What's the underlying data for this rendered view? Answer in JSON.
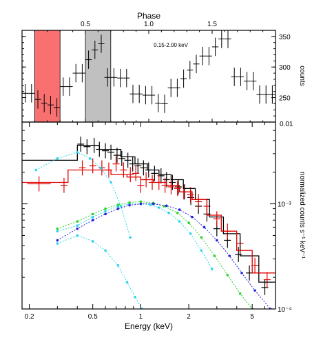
{
  "chart_data": [
    {
      "type": "line",
      "panel": "top",
      "title": "Phase",
      "annotation": "0.15-2.00 keV",
      "ylabel": "counts",
      "xlim": [
        0,
        2.0
      ],
      "ylim": [
        210,
        360
      ],
      "x_ticks": [
        {
          "value": 0.5,
          "label": "0.5"
        },
        {
          "value": 1.0,
          "label": "1.0"
        },
        {
          "value": 1.5,
          "label": "1.5"
        }
      ],
      "y_ticks": [
        {
          "value": 350,
          "label": "350"
        },
        {
          "value": 300,
          "label": "300"
        },
        {
          "value": 250,
          "label": "250"
        }
      ],
      "corner_label": "0.01",
      "shaded_regions": [
        {
          "x0": 0.1,
          "x1": 0.3,
          "color": "#f87070"
        },
        {
          "x0": 0.5,
          "x1": 0.7,
          "color": "#c0c0c0"
        }
      ],
      "series": [
        {
          "color": "#000000",
          "x": [
            0.025,
            0.075,
            0.125,
            0.175,
            0.225,
            0.275,
            0.325,
            0.375,
            0.425,
            0.475,
            0.525,
            0.575,
            0.625,
            0.675,
            0.725,
            0.775,
            0.825,
            0.875,
            0.925,
            0.975,
            1.025,
            1.075,
            1.125,
            1.175,
            1.225,
            1.275,
            1.325,
            1.375,
            1.425,
            1.475,
            1.525,
            1.575,
            1.625,
            1.675,
            1.725,
            1.775,
            1.825,
            1.875,
            1.925,
            1.975
          ],
          "y": [
            257,
            257,
            247,
            241,
            238,
            234,
            268,
            268,
            290,
            290,
            312,
            328,
            338,
            283,
            283,
            282,
            282,
            256,
            256,
            254,
            254,
            241,
            240,
            266,
            266,
            281,
            295,
            305,
            318,
            318,
            333,
            346,
            346,
            284,
            284,
            277,
            277,
            255,
            255,
            255
          ],
          "yerr": [
            15,
            15,
            15,
            15,
            15,
            15,
            15,
            15,
            15,
            15,
            15,
            15,
            15,
            15,
            15,
            15,
            15,
            15,
            15,
            15,
            15,
            15,
            15,
            15,
            15,
            15,
            15,
            15,
            15,
            15,
            15,
            15,
            15,
            15,
            15,
            15,
            15,
            15,
            15,
            15
          ]
        }
      ]
    },
    {
      "type": "line",
      "panel": "bottom",
      "xlabel": "Energy (keV)",
      "ylabel": "normalized counts  s⁻¹ keV⁻¹",
      "xscale": "log",
      "yscale": "log",
      "xlim": [
        0.18,
        7.0
      ],
      "ylim": [
        0.0001,
        0.006
      ],
      "x_ticks": [
        {
          "value": 0.2,
          "label": "0.2"
        },
        {
          "value": 0.5,
          "label": "0.5"
        },
        {
          "value": 1,
          "label": "1"
        },
        {
          "value": 2,
          "label": "2"
        },
        {
          "value": 5,
          "label": "5"
        }
      ],
      "y_ticks": [
        {
          "value": 0.001,
          "label": "10⁻³"
        },
        {
          "value": 0.0001,
          "label": "10⁻⁴"
        }
      ],
      "series": [
        {
          "kind": "data",
          "color": "#000000",
          "x": [
            0.42,
            0.46,
            0.51,
            0.55,
            0.6,
            0.65,
            0.71,
            0.76,
            0.83,
            0.89,
            0.96,
            1.04,
            1.12,
            1.22,
            1.34,
            1.45,
            1.58,
            1.72,
            1.88,
            2.06,
            2.3,
            2.6,
            3.0,
            3.5,
            4.1,
            4.8,
            6.0
          ],
          "y": [
            0.0037,
            0.0035,
            0.0036,
            0.0033,
            0.0032,
            0.0031,
            0.0029,
            0.0027,
            0.0026,
            0.0024,
            0.0023,
            0.0022,
            0.0021,
            0.00195,
            0.00185,
            0.0017,
            0.0016,
            0.00145,
            0.0013,
            0.00115,
            0.00095,
            0.0008,
            0.00058,
            0.00045,
            0.00033,
            0.00022,
            0.00016
          ]
        },
        {
          "kind": "data",
          "color": "#e00000",
          "x": [
            0.23,
            0.33,
            0.43,
            0.5,
            0.57,
            0.63,
            0.7,
            0.78,
            0.86,
            0.93,
            1.0,
            1.08,
            1.18,
            1.3,
            1.42,
            1.55,
            1.7,
            1.86,
            2.05,
            2.3,
            2.6,
            3.0,
            3.5,
            4.2,
            5.2,
            6.2
          ],
          "y": [
            0.00155,
            0.0015,
            0.0022,
            0.0023,
            0.0022,
            0.0021,
            0.0024,
            0.0021,
            0.0019,
            0.00195,
            0.0015,
            0.0017,
            0.0016,
            0.0016,
            0.0015,
            0.00145,
            0.0014,
            0.0013,
            0.00122,
            0.00105,
            0.00095,
            0.00072,
            0.00055,
            0.00042,
            0.00026,
            0.00019
          ]
        },
        {
          "kind": "model",
          "color": "#000000",
          "x": [
            0.18,
            0.4,
            0.4,
            0.55,
            0.55,
            0.75,
            0.75,
            0.92,
            0.92,
            1.1,
            1.1,
            1.3,
            1.3,
            1.55,
            1.55,
            1.85,
            1.85,
            2.2,
            2.2,
            2.7,
            2.7,
            3.3,
            3.3,
            4.2,
            4.2,
            5.5,
            5.5,
            7.0
          ],
          "y": [
            0.0026,
            0.0026,
            0.0036,
            0.0036,
            0.0033,
            0.0033,
            0.0028,
            0.0028,
            0.0024,
            0.0024,
            0.0021,
            0.0021,
            0.0019,
            0.0019,
            0.0017,
            0.0017,
            0.0014,
            0.0014,
            0.0011,
            0.0011,
            0.00075,
            0.00075,
            0.00052,
            0.00052,
            0.00032,
            0.00032,
            0.00018,
            0.00018
          ]
        },
        {
          "kind": "model",
          "color": "#e00000",
          "x": [
            0.18,
            0.35,
            0.35,
            0.48,
            0.48,
            0.65,
            0.65,
            0.82,
            0.82,
            1.0,
            1.0,
            1.2,
            1.2,
            1.45,
            1.45,
            1.75,
            1.75,
            2.1,
            2.1,
            2.6,
            2.6,
            3.2,
            3.2,
            4.0,
            4.0,
            5.0,
            5.0,
            7.0
          ],
          "y": [
            0.0016,
            0.0016,
            0.0021,
            0.0021,
            0.0021,
            0.0021,
            0.0019,
            0.0019,
            0.0018,
            0.0018,
            0.0017,
            0.0017,
            0.0016,
            0.0016,
            0.0015,
            0.0015,
            0.0013,
            0.0013,
            0.0011,
            0.0011,
            0.00078,
            0.00078,
            0.00055,
            0.00055,
            0.00036,
            0.00036,
            0.00022,
            0.00022
          ]
        },
        {
          "kind": "component",
          "color": "#2ad4ec",
          "x": [
            0.22,
            0.3,
            0.4,
            0.48,
            0.56,
            0.65,
            0.75,
            0.86
          ],
          "y": [
            0.0021,
            0.0027,
            0.0031,
            0.0027,
            0.0022,
            0.0016,
            0.00095,
            0.00048
          ]
        },
        {
          "kind": "component",
          "color": "#2ad4ec",
          "x": [
            0.3,
            0.4,
            0.5,
            0.6,
            0.72,
            0.82,
            0.92,
            1.02
          ],
          "y": [
            0.00042,
            0.0005,
            0.00044,
            0.00036,
            0.00026,
            0.00018,
            0.00013,
            0.0001
          ]
        },
        {
          "kind": "component",
          "color": "#2ad4ec",
          "x": [
            0.3,
            0.4,
            0.5,
            0.6,
            0.72,
            0.85,
            1.0,
            1.15,
            1.3,
            1.5,
            1.75,
            2.05,
            2.4,
            2.8
          ],
          "y": [
            0.00055,
            0.00062,
            0.00075,
            0.00085,
            0.00095,
            0.001,
            0.001,
            0.00098,
            0.00092,
            0.00082,
            0.00068,
            0.00052,
            0.00036,
            0.00024
          ]
        },
        {
          "kind": "component",
          "color": "#2ad42a",
          "x": [
            0.3,
            0.4,
            0.5,
            0.6,
            0.72,
            0.85,
            1.0,
            1.2,
            1.4,
            1.7,
            2.0,
            2.4,
            2.9,
            3.5,
            4.2,
            5.0
          ],
          "y": [
            0.00058,
            0.00068,
            0.0008,
            0.0009,
            0.00098,
            0.00103,
            0.00105,
            0.00102,
            0.00095,
            0.00082,
            0.00066,
            0.00048,
            0.00032,
            0.00021,
            0.00014,
            0.0001
          ]
        },
        {
          "kind": "component",
          "color": "#2222e0",
          "x": [
            0.3,
            0.4,
            0.5,
            0.6,
            0.72,
            0.85,
            1.0,
            1.2,
            1.45,
            1.75,
            2.1,
            2.5,
            3.0,
            3.6,
            4.3,
            5.2,
            6.5
          ],
          "y": [
            0.00045,
            0.00058,
            0.0007,
            0.0008,
            0.0009,
            0.00097,
            0.001,
            0.001,
            0.00096,
            0.00088,
            0.00075,
            0.0006,
            0.00045,
            0.00032,
            0.00022,
            0.00015,
            0.0001
          ]
        }
      ]
    }
  ]
}
